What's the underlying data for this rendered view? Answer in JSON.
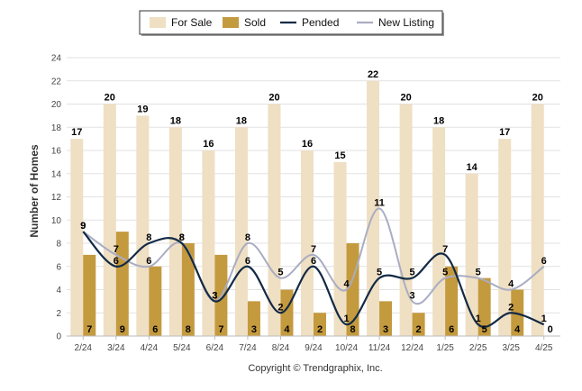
{
  "chart_data": {
    "type": "bar",
    "categories": [
      "2/24",
      "3/24",
      "4/24",
      "5/24",
      "6/24",
      "7/24",
      "8/24",
      "9/24",
      "10/24",
      "11/24",
      "12/24",
      "1/25",
      "2/25",
      "3/25",
      "4/25"
    ],
    "series": [
      {
        "name": "For Sale",
        "type": "bar",
        "color": "#efdfc3",
        "values": [
          17,
          20,
          19,
          18,
          16,
          18,
          20,
          16,
          15,
          22,
          20,
          18,
          14,
          17,
          20
        ]
      },
      {
        "name": "Sold",
        "type": "bar",
        "color": "#c49a3e",
        "values": [
          7,
          9,
          6,
          8,
          7,
          3,
          4,
          2,
          8,
          3,
          2,
          6,
          5,
          4,
          0
        ]
      },
      {
        "name": "Pended",
        "type": "line",
        "color": "#132a45",
        "values": [
          9,
          6,
          8,
          8,
          3,
          6,
          2,
          6,
          1,
          5,
          5,
          7,
          1,
          2,
          1
        ]
      },
      {
        "name": "New Listing",
        "type": "line",
        "color": "#a9adc2",
        "values": [
          9,
          7,
          6,
          8,
          3,
          8,
          5,
          7,
          4,
          11,
          3,
          5,
          5,
          4,
          6
        ]
      }
    ],
    "xlabel": "",
    "ylabel": "Number of Homes",
    "ylim": [
      0,
      24
    ],
    "yticks": [
      0,
      2,
      4,
      6,
      8,
      10,
      12,
      14,
      16,
      18,
      20,
      22,
      24
    ],
    "grid": true,
    "legend": "top-center"
  },
  "credit": "Copyright © Trendgraphix, Inc."
}
